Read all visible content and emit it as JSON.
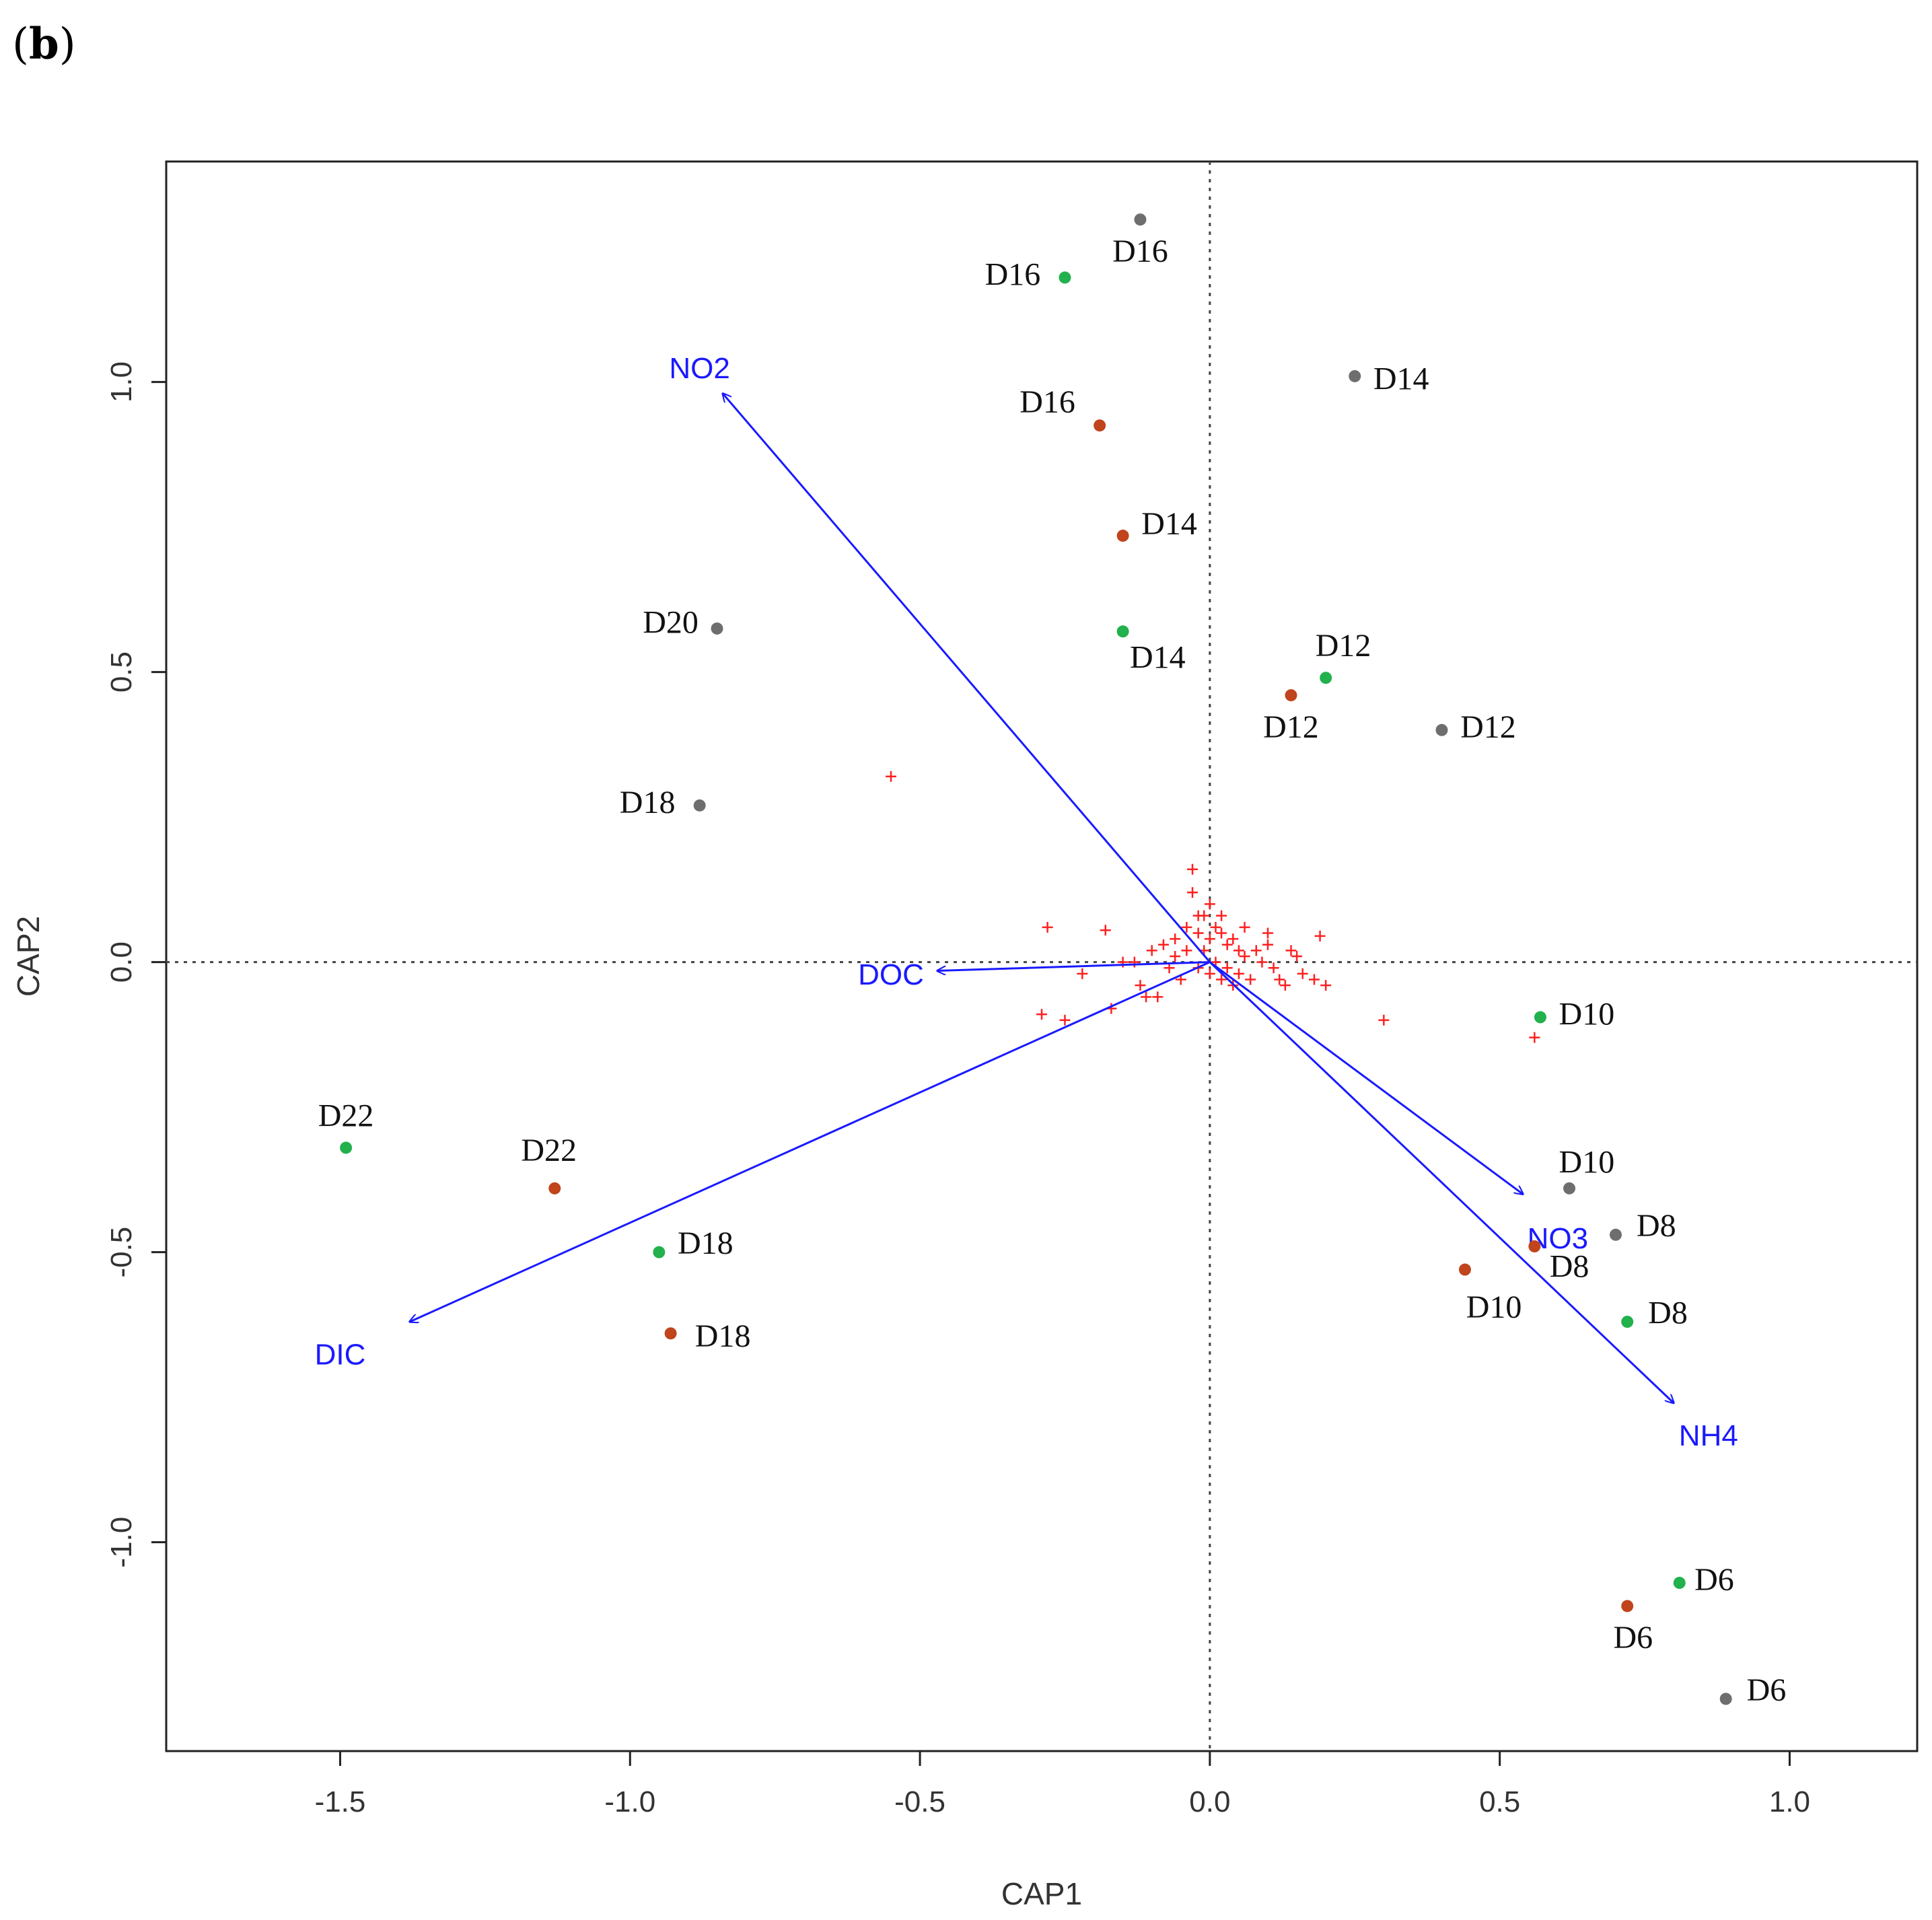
{
  "panel_label": "b",
  "chart_data": {
    "type": "scatter",
    "title": "",
    "xlabel": "CAP1",
    "ylabel": "CAP2",
    "xlim": [
      -1.8,
      1.22
    ],
    "ylim": [
      -1.36,
      1.38
    ],
    "x_ticks": [
      -1.5,
      -1.0,
      -0.5,
      0.0,
      0.5,
      1.0
    ],
    "x_tick_labels": [
      "-1.5",
      "-1.0",
      "-0.5",
      "0.0",
      "0.5",
      "1.0"
    ],
    "y_ticks": [
      -1.0,
      -0.5,
      0.0,
      0.5,
      1.0
    ],
    "y_tick_labels": [
      "-1.0",
      "-0.5",
      "0.0",
      "0.5",
      "1.0"
    ],
    "reference_lines": {
      "x": 0,
      "y": 0
    },
    "colors": {
      "gray": "#6e6e6e",
      "green": "#22b14c",
      "red": "#c0441c",
      "vector": "#1a1aff",
      "species": "#ff2020"
    },
    "series": [
      {
        "name": "gray",
        "points": [
          {
            "label": "D16",
            "x": -0.12,
            "y": 1.28,
            "lx": -0.12,
            "ly": 1.22
          },
          {
            "label": "D14",
            "x": 0.25,
            "y": 1.01,
            "lx": 0.33,
            "ly": 1.0
          },
          {
            "label": "D20",
            "x": -0.85,
            "y": 0.575,
            "lx": -0.93,
            "ly": 0.58
          },
          {
            "label": "D12",
            "x": 0.4,
            "y": 0.4,
            "lx": 0.48,
            "ly": 0.4
          },
          {
            "label": "D18",
            "x": -0.88,
            "y": 0.27,
            "lx": -0.97,
            "ly": 0.27
          },
          {
            "label": "D10",
            "x": 0.62,
            "y": -0.39,
            "lx": 0.65,
            "ly": -0.35
          },
          {
            "label": "D8",
            "x": 0.7,
            "y": -0.47,
            "lx": 0.77,
            "ly": -0.46
          },
          {
            "label": "D6",
            "x": 0.89,
            "y": -1.27,
            "lx": 0.96,
            "ly": -1.26
          }
        ]
      },
      {
        "name": "green",
        "points": [
          {
            "label": "D16",
            "x": -0.25,
            "y": 1.18,
            "lx": -0.34,
            "ly": 1.18
          },
          {
            "label": "D14",
            "x": -0.15,
            "y": 0.57,
            "lx": -0.09,
            "ly": 0.52
          },
          {
            "label": "D12",
            "x": 0.2,
            "y": 0.49,
            "lx": 0.23,
            "ly": 0.54
          },
          {
            "label": "D10",
            "x": 0.57,
            "y": -0.095,
            "lx": 0.65,
            "ly": -0.095
          },
          {
            "label": "D22",
            "x": -1.49,
            "y": -0.32,
            "lx": -1.49,
            "ly": -0.27
          },
          {
            "label": "D18",
            "x": -0.95,
            "y": -0.5,
            "lx": -0.87,
            "ly": -0.49
          },
          {
            "label": "D8",
            "x": 0.72,
            "y": -0.62,
            "lx": 0.79,
            "ly": -0.61
          },
          {
            "label": "D6",
            "x": 0.81,
            "y": -1.07,
            "lx": 0.87,
            "ly": -1.07
          }
        ]
      },
      {
        "name": "red",
        "points": [
          {
            "label": "D16",
            "x": -0.19,
            "y": 0.925,
            "lx": -0.28,
            "ly": 0.96
          },
          {
            "label": "D14",
            "x": -0.15,
            "y": 0.735,
            "lx": -0.07,
            "ly": 0.75
          },
          {
            "label": "D12",
            "x": 0.14,
            "y": 0.46,
            "lx": 0.14,
            "ly": 0.4
          },
          {
            "label": "D22",
            "x": -1.13,
            "y": -0.39,
            "lx": -1.14,
            "ly": -0.33
          },
          {
            "label": "D8",
            "x": 0.56,
            "y": -0.49,
            "lx": 0.62,
            "ly": -0.53
          },
          {
            "label": "D10",
            "x": 0.44,
            "y": -0.53,
            "lx": 0.49,
            "ly": -0.6
          },
          {
            "label": "D18",
            "x": -0.93,
            "y": -0.64,
            "lx": -0.84,
            "ly": -0.65
          },
          {
            "label": "D6",
            "x": 0.72,
            "y": -1.11,
            "lx": 0.73,
            "ly": -1.17
          }
        ]
      }
    ],
    "vectors": [
      {
        "name": "NO2",
        "x": -0.84,
        "y": 0.98,
        "lx": -0.88,
        "ly": 1.02
      },
      {
        "name": "DOC",
        "x": -0.47,
        "y": -0.015,
        "lx": -0.55,
        "ly": -0.025
      },
      {
        "name": "DIC",
        "x": -1.38,
        "y": -0.62,
        "lx": -1.5,
        "ly": -0.68
      },
      {
        "name": "NO3",
        "x": 0.54,
        "y": -0.4,
        "lx": 0.6,
        "ly": -0.48
      },
      {
        "name": "NH4",
        "x": 0.8,
        "y": -0.76,
        "lx": 0.86,
        "ly": -0.82
      }
    ],
    "species": [
      [
        -0.55,
        0.32
      ],
      [
        -0.28,
        0.06
      ],
      [
        -0.18,
        0.055
      ],
      [
        -0.22,
        -0.02
      ],
      [
        -0.15,
        0.0
      ],
      [
        -0.12,
        -0.04
      ],
      [
        -0.29,
        -0.09
      ],
      [
        -0.25,
        -0.1
      ],
      [
        -0.17,
        -0.08
      ],
      [
        -0.09,
        -0.06
      ],
      [
        -0.08,
        0.03
      ],
      [
        -0.06,
        0.01
      ],
      [
        -0.05,
        -0.03
      ],
      [
        -0.04,
        0.06
      ],
      [
        -0.03,
        0.16
      ],
      [
        -0.03,
        0.12
      ],
      [
        -0.02,
        0.05
      ],
      [
        -0.02,
        -0.01
      ],
      [
        -0.01,
        0.08
      ],
      [
        -0.01,
        0.02
      ],
      [
        0.0,
        0.1
      ],
      [
        0.0,
        0.04
      ],
      [
        0.0,
        -0.02
      ],
      [
        0.01,
        0.06
      ],
      [
        0.01,
        0.0
      ],
      [
        0.02,
        0.05
      ],
      [
        0.02,
        -0.03
      ],
      [
        0.03,
        0.03
      ],
      [
        0.03,
        -0.01
      ],
      [
        0.04,
        0.04
      ],
      [
        0.05,
        0.02
      ],
      [
        0.05,
        -0.02
      ],
      [
        0.06,
        0.01
      ],
      [
        0.07,
        -0.03
      ],
      [
        0.08,
        0.02
      ],
      [
        0.09,
        0.0
      ],
      [
        0.1,
        0.03
      ],
      [
        0.11,
        -0.01
      ],
      [
        0.12,
        -0.03
      ],
      [
        0.14,
        0.02
      ],
      [
        0.16,
        -0.02
      ],
      [
        0.18,
        -0.03
      ],
      [
        0.19,
        0.045
      ],
      [
        0.2,
        -0.04
      ],
      [
        0.3,
        -0.1
      ],
      [
        -0.1,
        0.02
      ],
      [
        -0.07,
        -0.01
      ],
      [
        -0.04,
        0.02
      ],
      [
        -0.02,
        0.08
      ],
      [
        0.02,
        0.08
      ],
      [
        0.06,
        0.06
      ],
      [
        0.13,
        -0.04
      ],
      [
        0.56,
        -0.13
      ],
      [
        -0.13,
        0.0
      ],
      [
        -0.11,
        -0.06
      ],
      [
        0.04,
        -0.04
      ],
      [
        -0.06,
        0.04
      ],
      [
        0.1,
        0.05
      ],
      [
        0.15,
        0.01
      ]
    ]
  }
}
